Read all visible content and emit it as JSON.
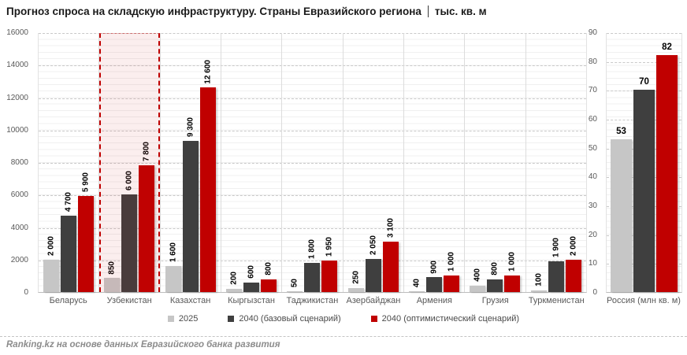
{
  "title": {
    "main": "Прогноз спроса на складскую инфраструктуру. Страны Евразийского региона",
    "unit": "тыс. кв. м"
  },
  "legend": {
    "items": [
      {
        "label": "2025",
        "color": "#c6c6c6"
      },
      {
        "label": "2040 (базовый сценарий)",
        "color": "#3f3f3f"
      },
      {
        "label": "2040 (оптимистический сценарий)",
        "color": "#c00000"
      }
    ]
  },
  "footer": {
    "source": "Ranking.kz на основе данных Евразийского банка развития"
  },
  "chart_data": {
    "type": "bar",
    "colors": [
      "#c6c6c6",
      "#3f3f3f",
      "#c00000"
    ],
    "legend_position": "bottom",
    "grid": "horizontal-dashed-major-with-solid-minor",
    "panels": [
      {
        "name": "eurasia",
        "unit": "тыс. кв. м",
        "ylim": [
          0,
          16000
        ],
        "ytick_step": 2000,
        "yminor_step": 400,
        "categories": [
          "Беларусь",
          "Узбекистан",
          "Казахстан",
          "Кыргызстан",
          "Таджикистан",
          "Азербайджан",
          "Армения",
          "Грузия",
          "Туркменистан"
        ],
        "highlight_category": "Узбекистан",
        "series": [
          {
            "name": "2025",
            "values": [
              2000,
              850,
              1600,
              200,
              50,
              250,
              40,
              400,
              100
            ],
            "labels": [
              "2 000",
              "850",
              "1 600",
              "200",
              "50",
              "250",
              "40",
              "400",
              "100"
            ]
          },
          {
            "name": "2040 (базовый сценарий)",
            "values": [
              4700,
              6000,
              9300,
              600,
              1800,
              2050,
              900,
              800,
              1900
            ],
            "labels": [
              "4 700",
              "6 000",
              "9 300",
              "600",
              "1 800",
              "2 050",
              "900",
              "800",
              "1 900"
            ]
          },
          {
            "name": "2040 (оптимистический сценарий)",
            "values": [
              5900,
              7800,
              12600,
              800,
              1950,
              3100,
              1000,
              1000,
              2000
            ],
            "labels": [
              "5 900",
              "7 800",
              "12 600",
              "800",
              "1 950",
              "3 100",
              "1 000",
              "1 000",
              "2 000"
            ]
          }
        ]
      },
      {
        "name": "russia",
        "unit": "млн кв. м",
        "ylim": [
          0,
          90
        ],
        "ytick_step": 10,
        "yminor_step": 2,
        "categories": [
          "Россия (млн кв. м)"
        ],
        "highlight_category": null,
        "series": [
          {
            "name": "2025",
            "values": [
              53
            ],
            "labels": [
              "53"
            ]
          },
          {
            "name": "2040 (базовый сценарий)",
            "values": [
              70
            ],
            "labels": [
              "70"
            ]
          },
          {
            "name": "2040 (оптимистический сценарий)",
            "values": [
              82
            ],
            "labels": [
              "82"
            ]
          }
        ]
      }
    ]
  }
}
